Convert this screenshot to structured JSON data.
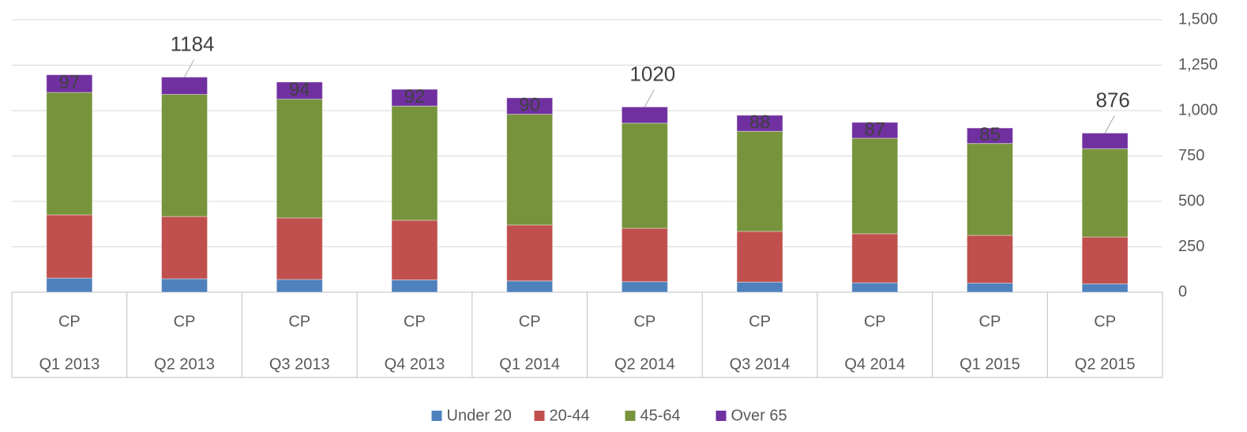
{
  "chart_data": {
    "type": "stacked_bar",
    "categories": [
      "Q1 2013",
      "Q2 2013",
      "Q3 2013",
      "Q4 2013",
      "Q1 2014",
      "Q2 2014",
      "Q3 2014",
      "Q4 2014",
      "Q1 2015",
      "Q2 2015"
    ],
    "group_labels": [
      "CP",
      "CP",
      "CP",
      "CP",
      "CP",
      "CP",
      "CP",
      "CP",
      "CP",
      "CP"
    ],
    "series": [
      {
        "name": "Under 20",
        "color": "#4f81bd",
        "values": [
          78,
          74,
          70,
          68,
          62,
          58,
          56,
          52,
          50,
          46
        ]
      },
      {
        "name": "20-44",
        "color": "#c0504d",
        "values": [
          348,
          343,
          339,
          328,
          308,
          294,
          279,
          270,
          263,
          258
        ]
      },
      {
        "name": "45-64",
        "color": "#77933c",
        "values": [
          674,
          672,
          654,
          629,
          610,
          579,
          551,
          526,
          506,
          486
        ]
      },
      {
        "name": "Over 65",
        "color": "#7030a0",
        "values": [
          97,
          95,
          94,
          92,
          90,
          89,
          88,
          87,
          85,
          86
        ],
        "value_labels": [
          "97",
          null,
          "94",
          "92",
          "90",
          null,
          "88",
          "87",
          "85",
          null
        ]
      }
    ],
    "totals": [
      null,
      1184,
      null,
      null,
      null,
      1020,
      null,
      null,
      null,
      876
    ],
    "ylim": [
      0,
      1500
    ],
    "yticks": [
      0,
      250,
      500,
      750,
      {
        "value": 1000,
        "label": "1,000"
      },
      {
        "value": 1250,
        "label": "1,250"
      },
      {
        "value": 1500,
        "label": "1,500"
      }
    ],
    "grid": true,
    "legend": "bottom"
  }
}
